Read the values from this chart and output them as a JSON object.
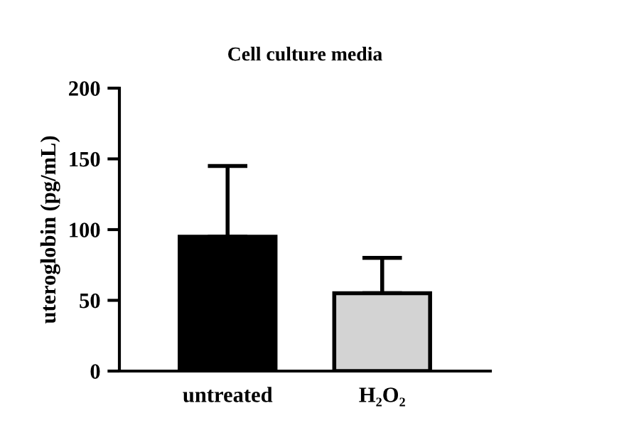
{
  "chart_data": {
    "type": "bar",
    "title": "Cell culture media",
    "ylabel": "uteroglobin (pg/mL)",
    "categories": [
      "untreated",
      "H₂O₂"
    ],
    "values": [
      95,
      55
    ],
    "colors": [
      "#000000",
      "#d3d3d3"
    ],
    "errors": [
      [
        95,
        145
      ],
      [
        55,
        80
      ]
    ],
    "ylim": [
      0,
      200
    ],
    "yticks": [
      0,
      50,
      100,
      150,
      200
    ],
    "grid": false,
    "legend": false
  }
}
